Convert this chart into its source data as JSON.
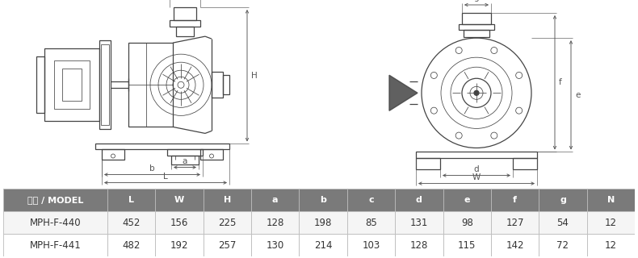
{
  "table_header": [
    "型式 / MODEL",
    "L",
    "W",
    "H",
    "a",
    "b",
    "c",
    "d",
    "e",
    "f",
    "g",
    "N"
  ],
  "table_rows": [
    [
      "MPH-F-440",
      "452",
      "156",
      "225",
      "128",
      "198",
      "85",
      "131",
      "98",
      "127",
      "54",
      "12"
    ],
    [
      "MPH-F-441",
      "482",
      "192",
      "257",
      "130",
      "214",
      "103",
      "128",
      "115",
      "142",
      "72",
      "12"
    ]
  ],
  "header_bg": "#7a7a7a",
  "header_fg": "#ffffff",
  "row_bg_odd": "#f5f5f5",
  "row_bg_even": "#ffffff",
  "row_fg": "#333333",
  "border_color": "#bbbbbb",
  "fig_bg": "#ffffff",
  "line_color": "#444444",
  "dim_color": "#555555"
}
